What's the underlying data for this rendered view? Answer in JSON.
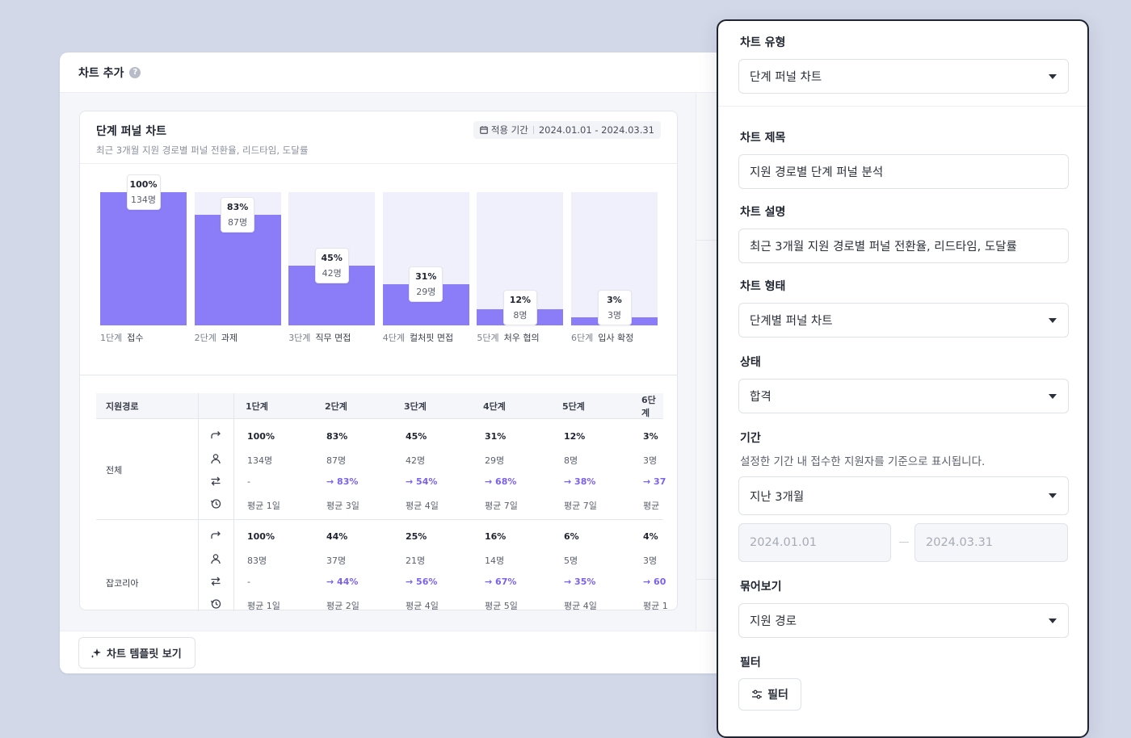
{
  "page": {
    "title": "차트 추가",
    "help_icon": "?",
    "template_button": "차트 템플릿 보기"
  },
  "chart": {
    "title": "단계 퍼널 차트",
    "description": "최근 3개월 지원 경로별 퍼널 전환율, 리드타임, 도달률",
    "period_label": "적용 기간",
    "period_value": "2024.01.01 - 2024.03.31"
  },
  "chart_data": {
    "type": "bar",
    "categories": [
      "1단계 접수",
      "2단계 과제",
      "3단계 직무 면접",
      "4단계 컬처핏 면접",
      "5단계 처우 협의",
      "6단계 입사 확정"
    ],
    "stages": [
      {
        "no": "1단계",
        "name": "접수",
        "pct_label": "100%",
        "count_label": "134명",
        "value": 100
      },
      {
        "no": "2단계",
        "name": "과제",
        "pct_label": "83%",
        "count_label": "87명",
        "value": 83
      },
      {
        "no": "3단계",
        "name": "직무 면접",
        "pct_label": "45%",
        "count_label": "42명",
        "value": 45
      },
      {
        "no": "4단계",
        "name": "컬처핏 면접",
        "pct_label": "31%",
        "count_label": "29명",
        "value": 31
      },
      {
        "no": "5단계",
        "name": "처우 협의",
        "pct_label": "12%",
        "count_label": "8명",
        "value": 12
      },
      {
        "no": "6단계",
        "name": "입사 확정",
        "pct_label": "3%",
        "count_label": "3명",
        "value": 3
      }
    ],
    "ylim": [
      0,
      100
    ],
    "bar_color": "#8b7cf7",
    "track_color": "#f0f0fc"
  },
  "table": {
    "headers": [
      "지원경로",
      "",
      "1단계",
      "2단계",
      "3단계",
      "4단계",
      "5단계",
      "6단계"
    ],
    "groups": [
      {
        "source": "전체",
        "pct": [
          "100%",
          "83%",
          "45%",
          "31%",
          "12%",
          "3%"
        ],
        "count": [
          "134명",
          "87명",
          "42명",
          "29명",
          "8명",
          "3명"
        ],
        "conv": [
          "-",
          "→ 83%",
          "→ 54%",
          "→ 68%",
          "→ 38%",
          "→ 37"
        ],
        "lead": [
          "평균 1일",
          "평균 3일",
          "평균 4일",
          "평균 7일",
          "평균 7일",
          "평균"
        ]
      },
      {
        "source": "잡코리아",
        "pct": [
          "100%",
          "44%",
          "25%",
          "16%",
          "6%",
          "4%"
        ],
        "count": [
          "83명",
          "37명",
          "21명",
          "14명",
          "5명",
          "3명"
        ],
        "conv": [
          "-",
          "→ 44%",
          "→ 56%",
          "→ 67%",
          "→ 35%",
          "→ 60"
        ],
        "lead": [
          "평균 1일",
          "평균 2일",
          "평균 4일",
          "평균 5일",
          "평균 4일",
          "평균 1"
        ]
      }
    ]
  },
  "panel": {
    "chart_type_label": "차트 유형",
    "chart_type_value": "단계 퍼널 차트",
    "chart_title_label": "차트 제목",
    "chart_title_value": "지원 경로별 단계 퍼널 분석",
    "chart_desc_label": "차트 설명",
    "chart_desc_value": "최근 3개월 지원 경로별 퍼널 전환율, 리드타임, 도달률",
    "chart_form_label": "차트 형태",
    "chart_form_value": "단계별 퍼널 차트",
    "status_label": "상태",
    "status_value": "합격",
    "period_label": "기간",
    "period_hint": "설정한 기간 내 접수한 지원자를 기준으로 표시됩니다.",
    "period_value": "지난 3개월",
    "start_date": "2024.01.01",
    "end_date": "2024.03.31",
    "group_label": "묶어보기",
    "group_value": "지원 경로",
    "filter_label": "필터",
    "filter_button": "필터"
  }
}
